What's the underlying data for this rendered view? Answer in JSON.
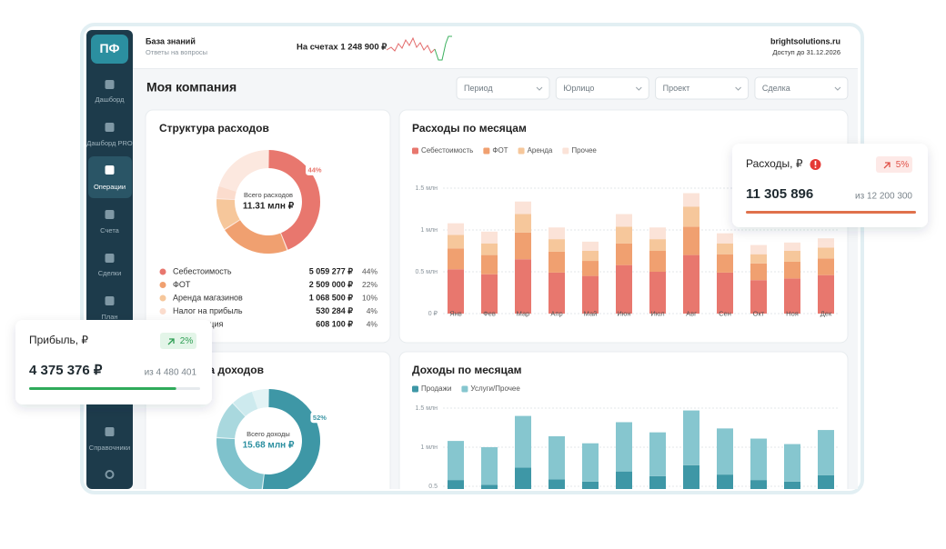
{
  "sidebar": {
    "logo": "ПФ",
    "items": [
      "Дашборд",
      "Дашборд PRO",
      "Операции",
      "Счета",
      "Сделки",
      "План",
      "Справочники"
    ]
  },
  "header": {
    "kb_title": "База знаний",
    "kb_subtitle": "Ответы на вопросы",
    "balance": "На счетах 1 248 900 ₽",
    "site": "brightsolutions.ru",
    "access": "Доступ до 31.12.2026"
  },
  "page_title": "Моя компания",
  "filters": [
    "Период",
    "Юрлицо",
    "Проект",
    "Сделка"
  ],
  "kpi": [
    {
      "title": "Расходы, ₽",
      "change": "5%",
      "value": "11 305 896",
      "of": "из 12 200 300",
      "progress": 100,
      "color": "#e0714c"
    },
    {
      "title": "Прибыль, ₽",
      "change": "2%",
      "value": "4 375 376 ₽",
      "of": "из 4 480 401",
      "progress": 86,
      "color": "#2faa5a"
    }
  ],
  "chart_data": [
    {
      "type": "pie",
      "title": "Структура расходов",
      "center_label": "Всего расходов",
      "center_value": "11.31 млн ₽",
      "categories": [
        "Себестоимость",
        "ФОТ",
        "Аренда магазинов",
        "Налог на прибыль",
        "Амортизация"
      ],
      "amount_labels": [
        "5 059 277 ₽",
        "2 509 000 ₽",
        "1 068 500 ₽",
        "530 284 ₽",
        "608 100 ₽"
      ],
      "values": [
        44,
        22,
        10,
        4,
        4
      ],
      "value_labels": [
        "44%",
        "22%",
        "10%",
        "4%",
        "4%"
      ],
      "colors": [
        "#e8776e",
        "#f0a070",
        "#f6c79b",
        "#fbdccd",
        "#fce8df"
      ]
    },
    {
      "type": "bar",
      "stacked": true,
      "title": "Расходы по месяцам",
      "categories": [
        "Янв",
        "Фев",
        "Мар",
        "Апр",
        "Май",
        "Июн",
        "Июл",
        "Авг",
        "Сен",
        "Окт",
        "Ноя",
        "Дек"
      ],
      "series": [
        {
          "name": "Себестоимость",
          "color": "#e8776e",
          "values": [
            0.53,
            0.47,
            0.65,
            0.49,
            0.45,
            0.58,
            0.5,
            0.7,
            0.49,
            0.4,
            0.42,
            0.46
          ]
        },
        {
          "name": "ФОТ",
          "color": "#f0a070",
          "values": [
            0.25,
            0.23,
            0.32,
            0.25,
            0.18,
            0.26,
            0.25,
            0.34,
            0.22,
            0.2,
            0.2,
            0.2
          ]
        },
        {
          "name": "Аренда",
          "color": "#f6c79b",
          "values": [
            0.16,
            0.14,
            0.22,
            0.15,
            0.12,
            0.2,
            0.14,
            0.24,
            0.13,
            0.11,
            0.13,
            0.13
          ]
        },
        {
          "name": "Прочее",
          "color": "#fbe3d8",
          "values": [
            0.14,
            0.14,
            0.15,
            0.14,
            0.11,
            0.15,
            0.14,
            0.16,
            0.12,
            0.11,
            0.1,
            0.11
          ]
        }
      ],
      "ylim": [
        0,
        1.5
      ],
      "yticks": [
        {
          "value": 0,
          "label": "0 ₽"
        },
        {
          "value": 0.5,
          "label": "0.5 млн"
        },
        {
          "value": 1,
          "label": "1 млн"
        },
        {
          "value": 1.5,
          "label": "1.5 млн"
        }
      ],
      "grid": true
    },
    {
      "type": "pie",
      "title": "Структура доходов",
      "center_label": "Всего доходы",
      "center_value": "15.68 млн ₽",
      "values": [
        52,
        24,
        12,
        7,
        5
      ],
      "value_labels": [
        "52%",
        null,
        null,
        null,
        null
      ],
      "colors": [
        "#3e97a6",
        "#7fc2cc",
        "#a9d8de",
        "#cdeaee",
        "#e3f3f5"
      ]
    },
    {
      "type": "bar",
      "stacked": true,
      "title": "Доходы по месяцам",
      "series": [
        {
          "name": "Продажи",
          "color": "#3e97a6",
          "values": [
            0.58,
            0.52,
            0.74,
            0.59,
            0.56,
            0.69,
            0.63,
            0.77,
            0.65,
            0.58,
            0.56,
            0.64
          ]
        },
        {
          "name": "Услуги/Прочее",
          "color": "#86c6cf",
          "values": [
            0.5,
            0.48,
            0.66,
            0.55,
            0.49,
            0.63,
            0.56,
            0.7,
            0.59,
            0.53,
            0.48,
            0.58
          ]
        }
      ],
      "ylim": [
        0,
        1.5
      ],
      "yticks": [
        0.5,
        {
          "value": 1,
          "label": "1 млн"
        },
        {
          "value": 1.5,
          "label": "1.5 млн"
        }
      ],
      "grid": true
    }
  ]
}
